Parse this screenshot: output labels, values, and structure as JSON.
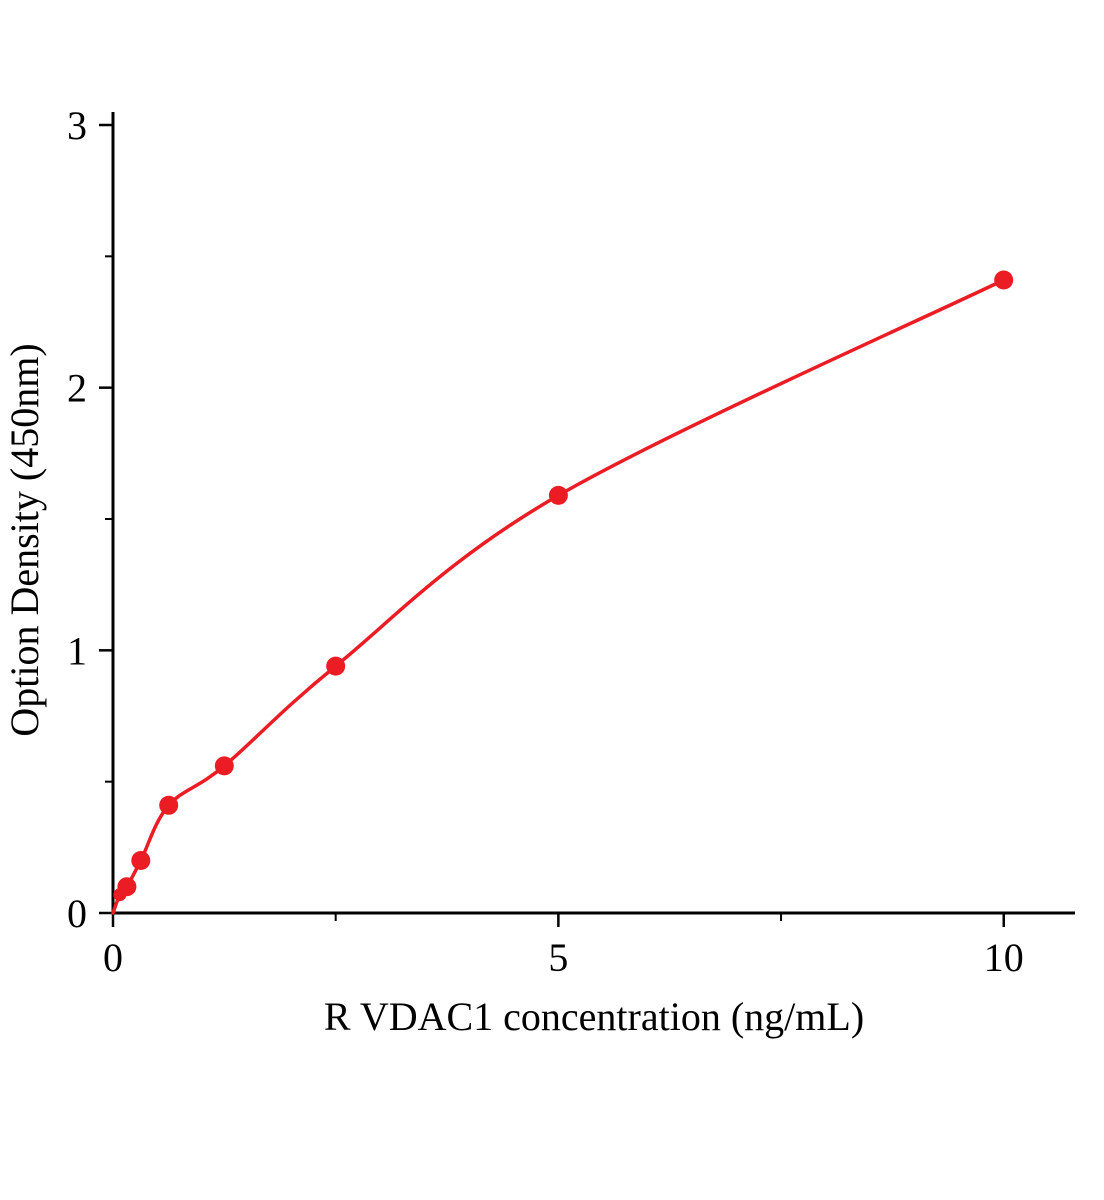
{
  "figure": {
    "background": "#ffffff",
    "axis_color": "#000000",
    "accent_color": "#ec1c24"
  },
  "chart_data": {
    "type": "scatter",
    "title": "",
    "xlabel": "R VDAC1  concentration (ng/mL)",
    "ylabel": "Option Density (450nm)",
    "x": [
      0.078,
      0.156,
      0.3125,
      0.625,
      1.25,
      2.5,
      5,
      10
    ],
    "y": [
      0.07,
      0.1,
      0.2,
      0.41,
      0.56,
      0.94,
      1.59,
      2.41
    ],
    "curve_start": [
      0,
      0
    ],
    "xlim": [
      0,
      10.8
    ],
    "ylim": [
      0,
      3
    ],
    "x_major_ticks": [
      0,
      5,
      10
    ],
    "x_tick_labels": [
      "0",
      "5",
      "10"
    ],
    "x_minor_ticks": [
      2.5,
      7.5
    ],
    "y_major_ticks": [
      0,
      1,
      2,
      3
    ],
    "y_tick_labels": [
      "0",
      "1",
      "2",
      "3"
    ],
    "y_minor_ticks": [
      0.5,
      1.5,
      2.5
    ],
    "grid": false,
    "legend": "none",
    "marker": "circle",
    "marker_color": "#ec1c24",
    "line_color": "#ec1c24",
    "fit": "smooth curve through standards"
  }
}
